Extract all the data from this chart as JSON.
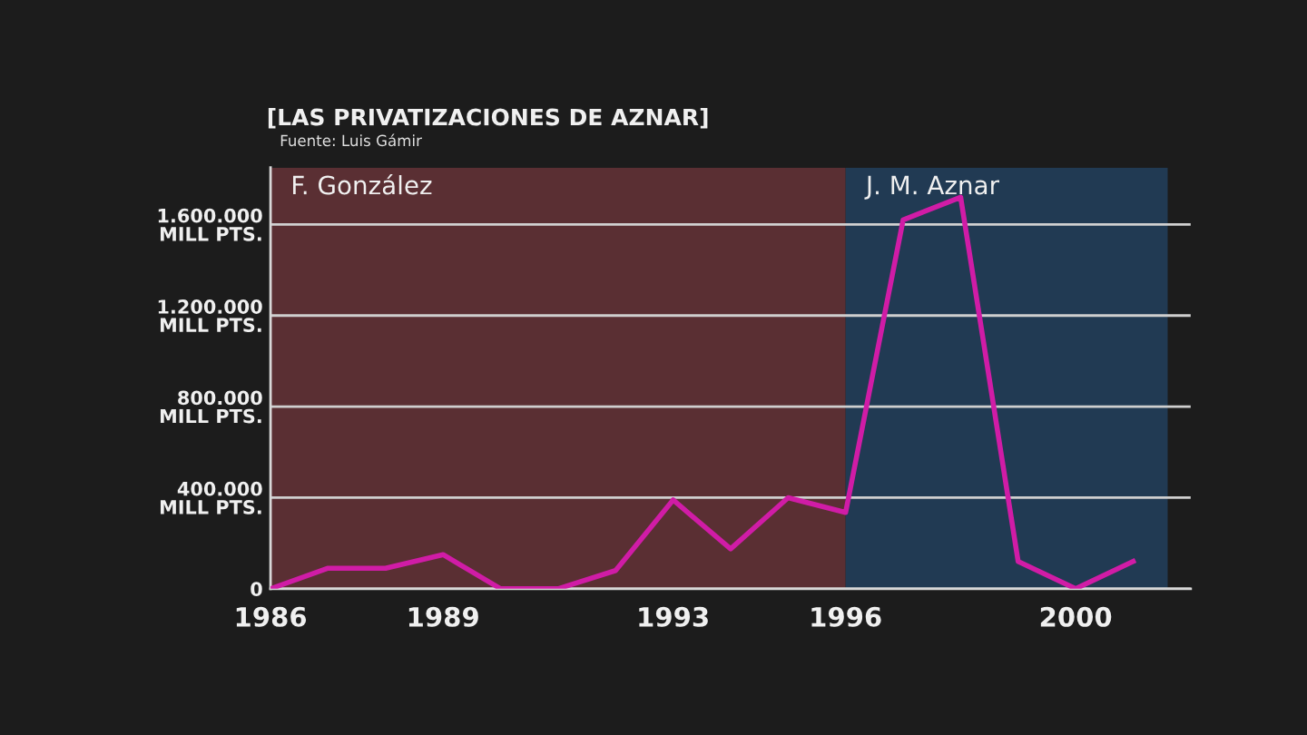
{
  "chart_data": {
    "type": "line",
    "title": "[LAS PRIVATIZACIONES DE AZNAR]",
    "annotations": [
      "Fuente: Luis Gámir"
    ],
    "x": [
      1986,
      1987,
      1988,
      1989,
      1990,
      1991,
      1992,
      1993,
      1994,
      1995,
      1996,
      1997,
      1998,
      1999,
      2000,
      2001
    ],
    "series": [
      {
        "color": "#d01ca6",
        "values": [
          0,
          90000,
          90000,
          150000,
          0,
          0,
          80000,
          390000,
          175000,
          400000,
          335000,
          1620000,
          1720000,
          120000,
          0,
          120000
        ]
      }
    ],
    "xlim": [
      1986,
      2002
    ],
    "xticks": [
      1986,
      1989,
      1993,
      1996,
      2000
    ],
    "ylim": [
      0,
      1850000
    ],
    "yticks": [
      0,
      {
        "value": 400000,
        "label": "400.000\nMILL PTS."
      },
      {
        "value": 800000,
        "label": "800.000\nMILL PTS."
      },
      {
        "value": 1200000,
        "label": "1.200.000\nMILL PTS."
      },
      {
        "value": 1600000,
        "label": "1.600.000\nMILL PTS."
      }
    ],
    "bands": [
      {
        "axis": "x",
        "from": 1986,
        "to": 1996,
        "label": "F. González",
        "color": "#5a2f33"
      },
      {
        "axis": "x",
        "from": 1996,
        "to": 2001.6,
        "label": "J. M. Aznar",
        "color": "#213a53"
      }
    ],
    "grid": "y",
    "line_style": "solid"
  }
}
